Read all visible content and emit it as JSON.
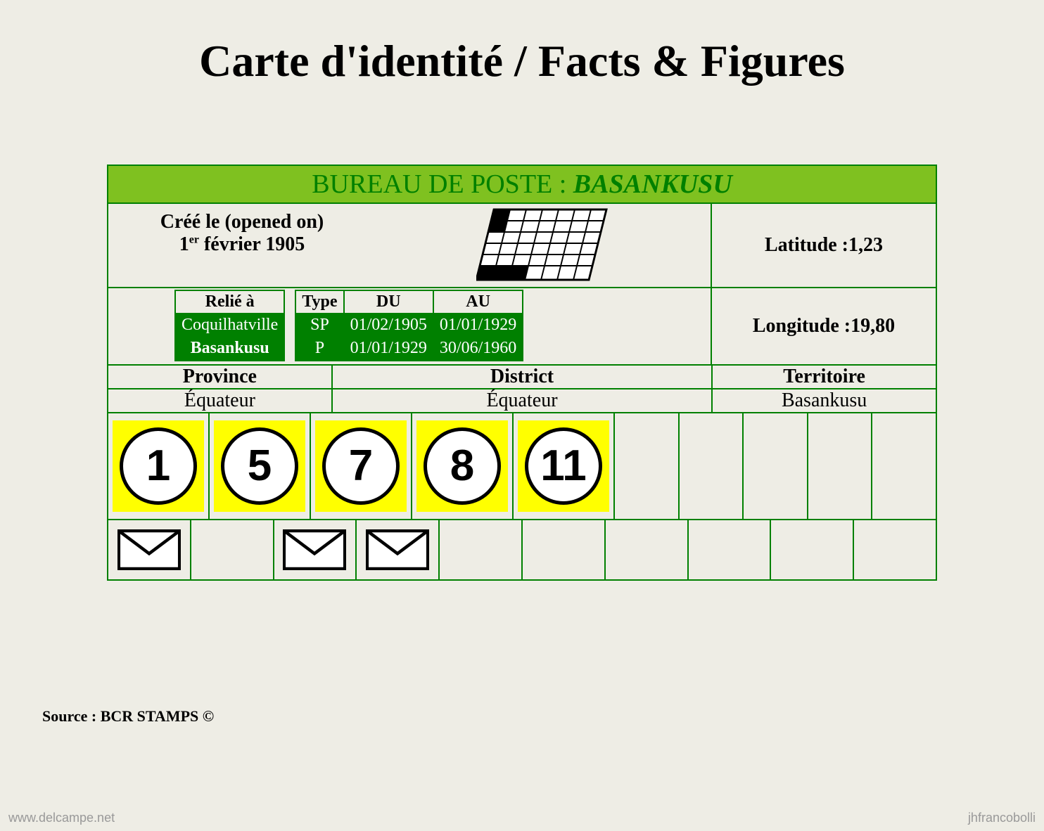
{
  "page": {
    "title": "Carte d'identité / Facts & Figures",
    "background_color": "#eeede5"
  },
  "header": {
    "prefix": "BUREAU DE POSTE : ",
    "name": "BASANKUSU",
    "bar_color": "#7fc120",
    "text_color": "#008000"
  },
  "created": {
    "label": "Créé le (opened on)",
    "day": "1",
    "ord": "er",
    "rest": " février 1905"
  },
  "coords": {
    "lat_label": "Latitude : ",
    "lat_value": "1,23",
    "lon_label": "Longitude : ",
    "lon_value": "19,80"
  },
  "linked": {
    "header": "Relié à",
    "rows": [
      "Coquilhatville",
      "Basankusu"
    ]
  },
  "periods": {
    "headers": {
      "type": "Type",
      "from": "DU",
      "to": "AU"
    },
    "rows": [
      {
        "type": "SP",
        "from": "01/02/1905",
        "to": "01/01/1929"
      },
      {
        "type": "P",
        "from": "01/01/1929",
        "to": "30/06/1960"
      }
    ]
  },
  "admin": {
    "province": {
      "label": "Province",
      "value": "Équateur"
    },
    "district": {
      "label": "District",
      "value": "Équateur"
    },
    "territoire": {
      "label": "Territoire",
      "value": "Basankusu"
    }
  },
  "circle_numbers": [
    "1",
    "5",
    "7",
    "8",
    "11",
    "",
    "",
    "",
    "",
    ""
  ],
  "envelope_flags": [
    true,
    false,
    true,
    true,
    false,
    false,
    false,
    false,
    false,
    false
  ],
  "colors": {
    "border": "#008000",
    "cell_green": "#008000",
    "badge_bg": "#ffff00",
    "circle_fill": "#ffffff",
    "circle_stroke": "#000000"
  },
  "source": "Source : BCR STAMPS ©",
  "footer": {
    "left": "www.delcampe.net",
    "right": "jhfrancobolli"
  }
}
